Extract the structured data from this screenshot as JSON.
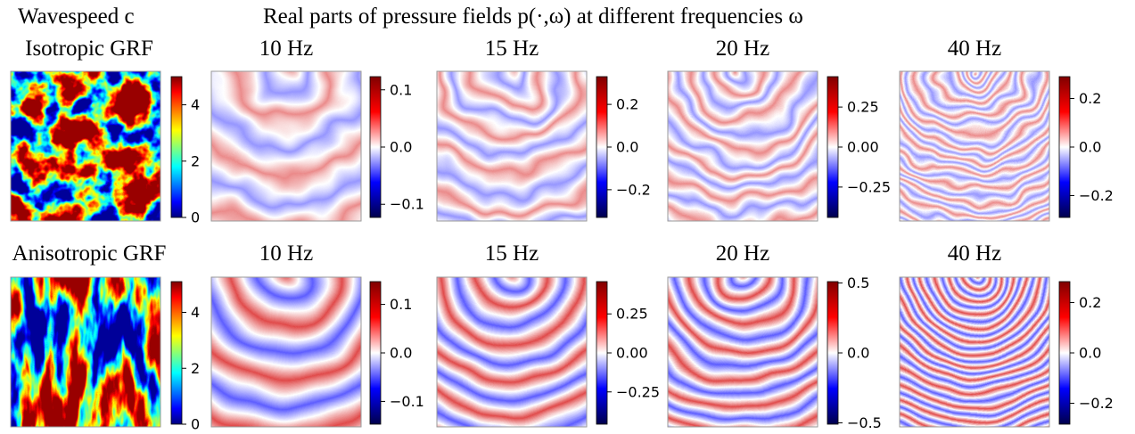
{
  "figure_titles": [
    "Wavespeed c",
    "Real parts of pressure fields p(·,ω) at different frequencies ω"
  ],
  "chart_data": [
    {
      "type": "heatmap",
      "title": "Isotropic GRF",
      "colormap": "jet",
      "zlim": [
        0,
        5
      ],
      "zticks": [
        0,
        2,
        4
      ]
    },
    {
      "type": "heatmap",
      "title": "10 Hz",
      "colormap": "seismic",
      "zlim": [
        -0.123,
        0.123
      ],
      "zticks": [
        {
          "value": -0.1,
          "label": "−0.1"
        },
        {
          "value": 0,
          "label": "0.0"
        },
        0.1
      ]
    },
    {
      "type": "heatmap",
      "title": "15 Hz",
      "colormap": "seismic",
      "zlim": [
        -0.33,
        0.33
      ],
      "zticks": [
        {
          "value": -0.2,
          "label": "−0.2"
        },
        {
          "value": 0,
          "label": "0.0"
        },
        0.2
      ]
    },
    {
      "type": "heatmap",
      "title": "20 Hz",
      "colormap": "seismic",
      "zlim": [
        -0.44,
        0.44
      ],
      "zticks": [
        {
          "value": -0.25,
          "label": "−0.25"
        },
        {
          "value": 0,
          "label": "0.00"
        },
        0.25
      ]
    },
    {
      "type": "heatmap",
      "title": "40 Hz",
      "colormap": "seismic",
      "zlim": [
        -0.29,
        0.29
      ],
      "zticks": [
        {
          "value": -0.2,
          "label": "−0.2"
        },
        {
          "value": 0,
          "label": "0.0"
        },
        0.2
      ]
    },
    {
      "type": "heatmap",
      "title": "Anisotropic GRF",
      "colormap": "jet",
      "zlim": [
        0,
        5.1
      ],
      "zticks": [
        0,
        2,
        4
      ]
    },
    {
      "type": "heatmap",
      "title": "10 Hz",
      "colormap": "seismic",
      "zlim": [
        -0.147,
        0.147
      ],
      "zticks": [
        {
          "value": -0.1,
          "label": "−0.1"
        },
        {
          "value": 0,
          "label": "0.0"
        },
        0.1
      ]
    },
    {
      "type": "heatmap",
      "title": "15 Hz",
      "colormap": "seismic",
      "zlim": [
        -0.457,
        0.457
      ],
      "zticks": [
        {
          "value": -0.25,
          "label": "−0.25"
        },
        {
          "value": 0,
          "label": "0.00"
        },
        0.25
      ]
    },
    {
      "type": "heatmap",
      "title": "20 Hz",
      "colormap": "seismic",
      "zlim": [
        -0.51,
        0.51
      ],
      "zticks": [
        {
          "value": -0.5,
          "label": "−0.5"
        },
        {
          "value": 0,
          "label": "0.0"
        },
        0.5
      ]
    },
    {
      "type": "heatmap",
      "title": "40 Hz",
      "colormap": "seismic",
      "zlim": [
        -0.283,
        0.283
      ],
      "zticks": [
        {
          "value": -0.2,
          "label": "−0.2"
        },
        {
          "value": 0,
          "label": "0.0"
        },
        0.2
      ]
    }
  ]
}
